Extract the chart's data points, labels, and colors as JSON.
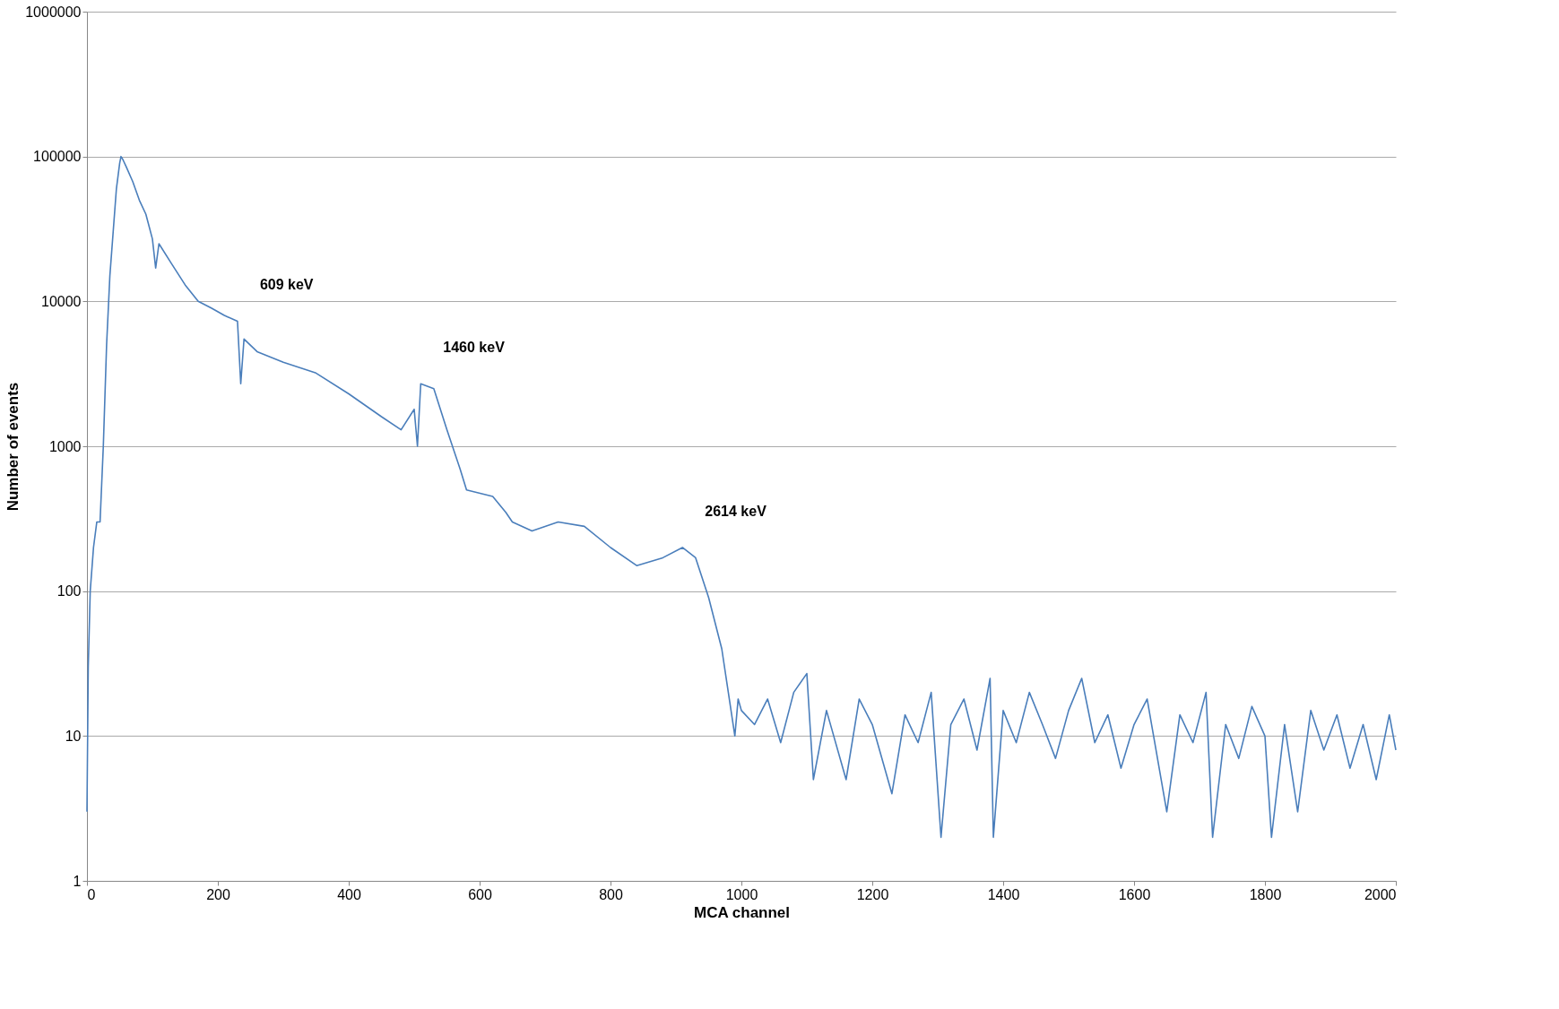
{
  "chart_data": {
    "type": "line",
    "xlabel": "MCA channel",
    "ylabel": "Number of events",
    "log": "y",
    "xlim": [
      0,
      2000
    ],
    "xticks": [
      0,
      200,
      400,
      600,
      800,
      1000,
      1200,
      1400,
      1600,
      1800,
      2000
    ],
    "ylim": [
      1,
      1000000
    ],
    "yticks": [
      1,
      10,
      100,
      1000,
      10000,
      100000,
      1000000
    ],
    "grid": "y",
    "marker": "none",
    "line_style": "solid",
    "annotations": [
      {
        "text": "609 keV",
        "x": 230,
        "y": 7300
      },
      {
        "text": "1460 keV",
        "x": 510,
        "y": 2700
      },
      {
        "text": "2614 keV",
        "x": 910,
        "y": 200
      }
    ],
    "series": [
      {
        "color": "#4a7ebb",
        "x": [
          0,
          2,
          5,
          10,
          15,
          20,
          25,
          30,
          35,
          40,
          45,
          50,
          52,
          55,
          60,
          70,
          80,
          90,
          100,
          105,
          110,
          130,
          150,
          170,
          190,
          210,
          230,
          235,
          240,
          260,
          300,
          350,
          400,
          450,
          480,
          500,
          505,
          510,
          530,
          550,
          570,
          580,
          620,
          640,
          650,
          680,
          720,
          760,
          800,
          840,
          880,
          910,
          930,
          950,
          970,
          980,
          990,
          995,
          1000,
          1020,
          1040,
          1060,
          1080,
          1100,
          1110,
          1130,
          1160,
          1180,
          1200,
          1230,
          1250,
          1270,
          1290,
          1305,
          1320,
          1340,
          1360,
          1380,
          1385,
          1400,
          1420,
          1440,
          1460,
          1480,
          1500,
          1520,
          1540,
          1560,
          1580,
          1600,
          1620,
          1650,
          1670,
          1690,
          1710,
          1720,
          1740,
          1760,
          1780,
          1800,
          1810,
          1830,
          1850,
          1870,
          1890,
          1910,
          1930,
          1950,
          1970,
          1990,
          2000
        ],
        "values": [
          3,
          30,
          100,
          200,
          300,
          300,
          1000,
          5000,
          15000,
          30000,
          60000,
          90000,
          100000,
          95000,
          85000,
          67000,
          50000,
          40000,
          27000,
          17000,
          25000,
          18000,
          13000,
          10000,
          9000,
          8000,
          7300,
          2700,
          5500,
          4500,
          3800,
          3200,
          2300,
          1600,
          1300,
          1800,
          1000,
          2700,
          2500,
          1300,
          700,
          500,
          450,
          350,
          300,
          260,
          300,
          280,
          200,
          150,
          170,
          200,
          170,
          90,
          40,
          20,
          10,
          18,
          15,
          12,
          18,
          9,
          20,
          27,
          5,
          15,
          5,
          18,
          12,
          4,
          14,
          9,
          20,
          2,
          12,
          18,
          8,
          25,
          2,
          15,
          9,
          20,
          12,
          7,
          15,
          25,
          9,
          14,
          6,
          12,
          18,
          3,
          14,
          9,
          20,
          2,
          12,
          7,
          16,
          10,
          2,
          12,
          3,
          15,
          8,
          14,
          6,
          12,
          5,
          14,
          8
        ]
      }
    ]
  }
}
